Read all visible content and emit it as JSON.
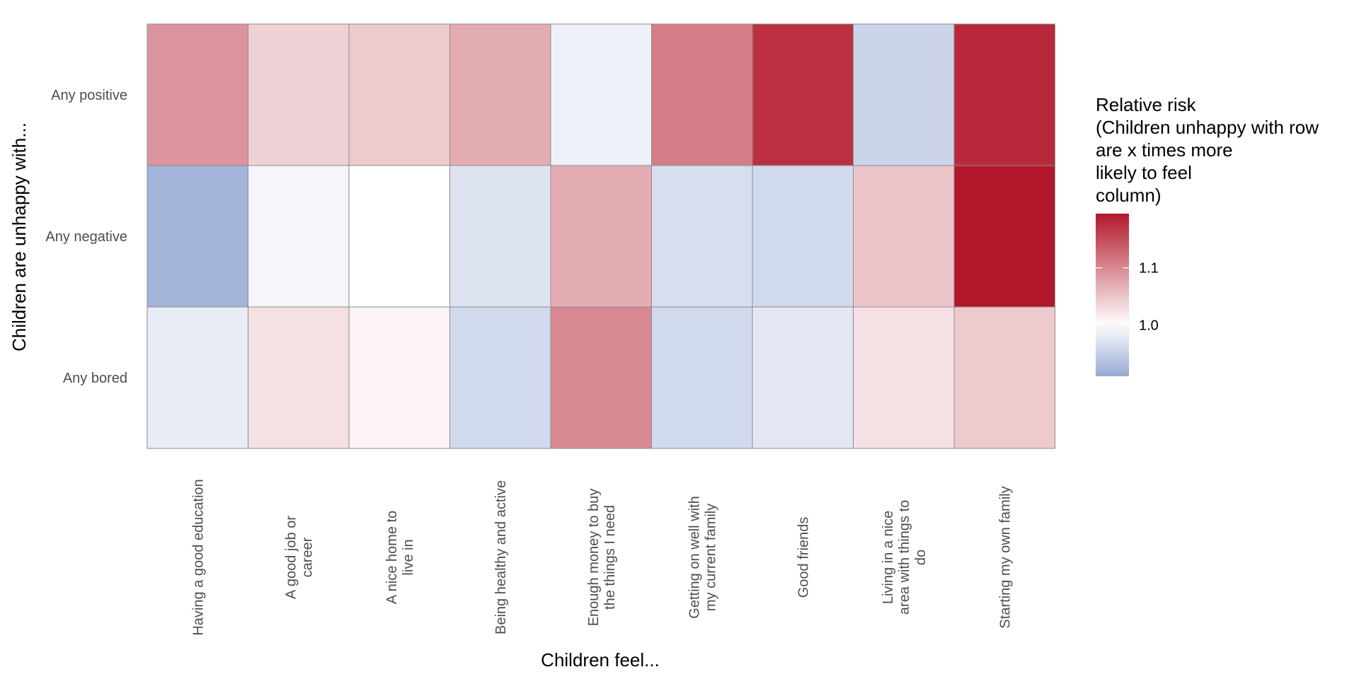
{
  "chart_data": {
    "type": "heatmap",
    "title": "",
    "xlabel": "Children feel...",
    "ylabel": "Children are unhappy with...",
    "x_categories": [
      "Having a good education",
      "A good job or career",
      "A nice home to live in",
      "Being healthy and active",
      "Enough money to buy the things I need",
      "Getting on well with my current family",
      "Good friends",
      "Living in a nice area with things to do",
      "Starting my own family"
    ],
    "x_tick_lines": [
      [
        "Having a good education"
      ],
      [
        "A good job or",
        "career"
      ],
      [
        "A nice home to",
        "live in"
      ],
      [
        "Being healthy and active"
      ],
      [
        "Enough money to buy",
        "the things I need"
      ],
      [
        "Getting on well with",
        "my current family"
      ],
      [
        "Good friends"
      ],
      [
        "Living in a nice",
        "area with things to",
        "do"
      ],
      [
        "Starting my own family"
      ]
    ],
    "y_categories": [
      "Any positive",
      "Any negative",
      "Any bored"
    ],
    "values": [
      [
        1.09,
        1.04,
        1.045,
        1.07,
        0.985,
        1.11,
        1.175,
        0.955,
        1.18
      ],
      [
        0.92,
        0.99,
        1.0,
        0.97,
        1.07,
        0.965,
        0.96,
        1.05,
        1.195
      ],
      [
        0.98,
        1.025,
        1.01,
        0.96,
        1.1,
        0.96,
        0.975,
        1.025,
        1.045
      ]
    ],
    "legend": {
      "title_lines": [
        "Relative risk",
        "(Children unhappy with row",
        "are x times more",
        "likely to feel",
        "column)"
      ],
      "ticks": [
        1.0,
        1.1
      ],
      "tick_labels": [
        "1.0",
        "1.1"
      ],
      "range": [
        0.91,
        1.195
      ],
      "placement": "right"
    },
    "colors": {
      "low": "#98aad4",
      "mid": "#ffffff",
      "high": "#b2182b",
      "grid": "#8c8c8c"
    }
  }
}
